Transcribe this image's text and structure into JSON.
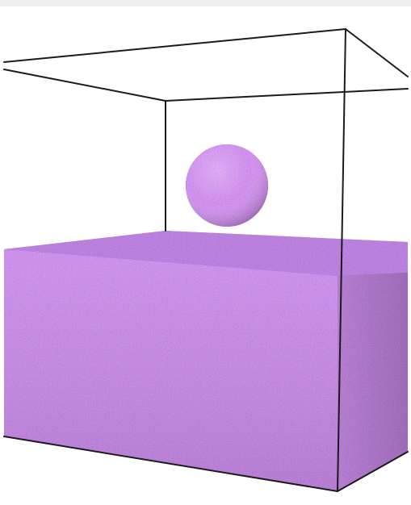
{
  "image": {
    "type": "3d-render",
    "subject": "particle-droplet-and-particle-slab-in-simulation-box",
    "colors": {
      "background": "#ffffff",
      "box_edges": "#1b1b1b",
      "particle_primary": "#5a4fb3",
      "particle_secondary": "#b24b5e",
      "particle_accent": "#d8b26a",
      "particle_light": "#e9dfe5"
    }
  }
}
